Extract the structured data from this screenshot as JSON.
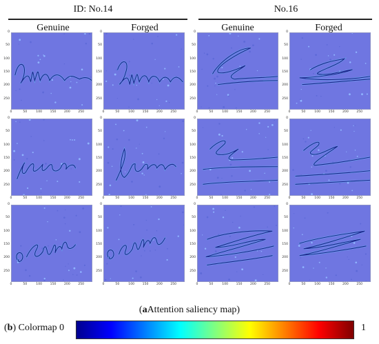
{
  "groups": [
    {
      "title": "ID: No.14",
      "columns": [
        "Genuine",
        "Forged"
      ]
    },
    {
      "title": "No.16",
      "columns": [
        "Genuine",
        "Forged"
      ]
    }
  ],
  "axis": {
    "y_ticks": [
      "0",
      "50",
      "100",
      "150",
      "200",
      "250"
    ],
    "x_ticks": [
      "0",
      "50",
      "100",
      "150",
      "200",
      "250"
    ]
  },
  "panels": [
    {
      "group": 0,
      "column": "Genuine",
      "row": 1,
      "signature_text": "Sullwa"
    },
    {
      "group": 0,
      "column": "Forged",
      "row": 1,
      "signature_text": "Sullvan"
    },
    {
      "group": 1,
      "column": "Genuine",
      "row": 1,
      "signature_text": ""
    },
    {
      "group": 1,
      "column": "Forged",
      "row": 1,
      "signature_text": ""
    },
    {
      "group": 0,
      "column": "Genuine",
      "row": 2,
      "signature_text": "Ieene"
    },
    {
      "group": 0,
      "column": "Forged",
      "row": 2,
      "signature_text": "Irene"
    },
    {
      "group": 1,
      "column": "Genuine",
      "row": 2,
      "signature_text": ""
    },
    {
      "group": 1,
      "column": "Forged",
      "row": 2,
      "signature_text": ""
    },
    {
      "group": 0,
      "column": "Genuine",
      "row": 3,
      "signature_text": "o Sullh"
    },
    {
      "group": 0,
      "column": "Forged",
      "row": 3,
      "signature_text": "o Sulh"
    },
    {
      "group": 1,
      "column": "Genuine",
      "row": 3,
      "signature_text": ""
    },
    {
      "group": 1,
      "column": "Forged",
      "row": 3,
      "signature_text": ""
    }
  ],
  "caption": {
    "label": "a",
    "text": "Attention saliency map"
  },
  "colormap": {
    "label": "b",
    "text": "Colormap 0",
    "max_label": "1"
  },
  "colors": {
    "background_blue": "#6f76e1",
    "stroke_dark": "#1d1f8a",
    "stroke_light": "#5ee6ff"
  }
}
